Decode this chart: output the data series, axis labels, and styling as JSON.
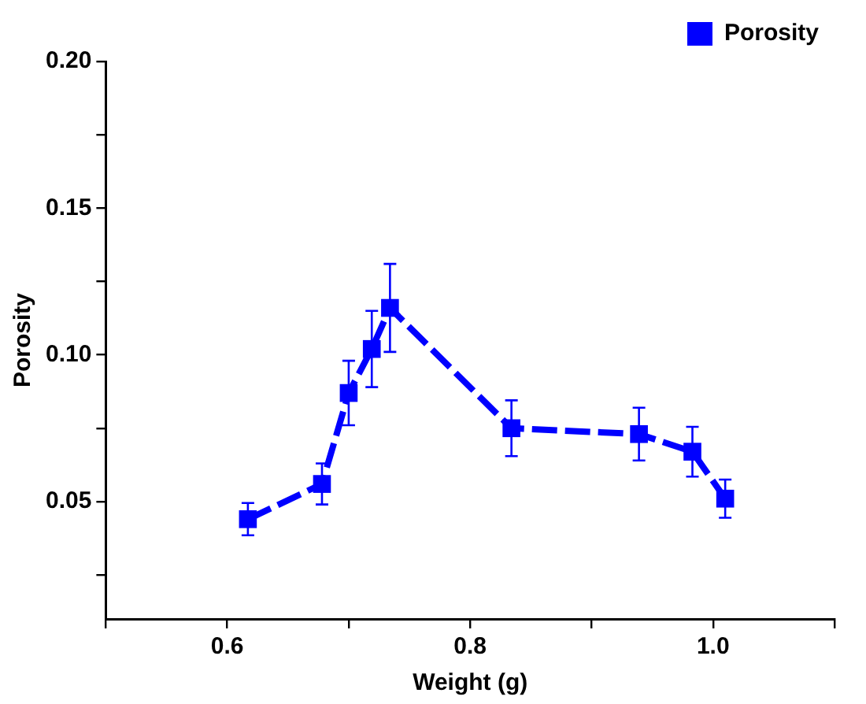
{
  "chart_data": {
    "type": "line",
    "xlabel": "Weight (g)",
    "ylabel": "Porosity",
    "series": [
      {
        "name": "Porosity",
        "color": "#0000ff",
        "x": [
          0.617,
          0.678,
          0.7,
          0.719,
          0.734,
          0.834,
          0.939,
          0.983,
          1.01
        ],
        "values": [
          0.044,
          0.056,
          0.087,
          0.102,
          0.116,
          0.075,
          0.073,
          0.067,
          0.051
        ],
        "errors": [
          0.0055,
          0.007,
          0.011,
          0.013,
          0.015,
          0.0095,
          0.009,
          0.0085,
          0.0065
        ]
      }
    ],
    "xlim": [
      0.5,
      1.1
    ],
    "xticks": [
      {
        "value": 0.5,
        "label": null
      },
      0.6,
      {
        "value": 0.7,
        "label": null
      },
      0.8,
      {
        "value": 0.9,
        "label": null
      },
      {
        "value": 1.0,
        "label": "1.0"
      },
      {
        "value": 1.1,
        "label": null
      }
    ],
    "ylim": [
      0.01,
      0.2
    ],
    "yticks": [
      {
        "value": 0.025,
        "label": null
      },
      0.05,
      {
        "value": 0.075,
        "label": null
      },
      {
        "value": 0.1,
        "label": "0.10"
      },
      {
        "value": 0.125,
        "label": null
      },
      0.15,
      {
        "value": 0.175,
        "label": null
      },
      {
        "value": 0.2,
        "label": "0.20"
      }
    ],
    "grid": false,
    "legend": "top right",
    "marker": "square",
    "line_style": "dashed"
  }
}
